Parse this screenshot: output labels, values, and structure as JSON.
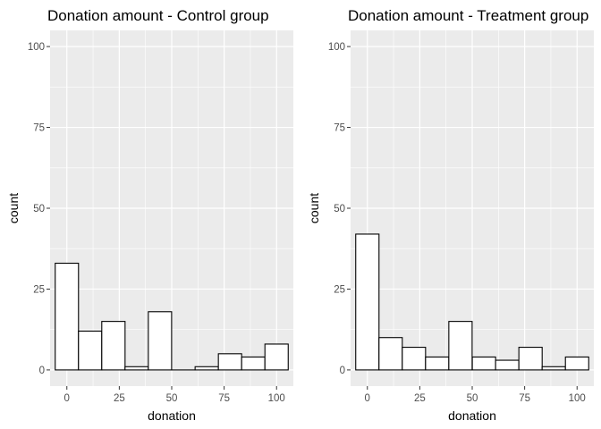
{
  "chart_data": [
    {
      "type": "bar",
      "title": "Donation amount - Control group",
      "xlabel": "donation",
      "ylabel": "count",
      "xticks": [
        0,
        25,
        50,
        75,
        100
      ],
      "yticks": [
        0,
        25,
        50,
        75,
        100
      ],
      "xlim": [
        -8,
        108
      ],
      "ylim": [
        0,
        100
      ],
      "bin_width": 11.1,
      "bins": [
        {
          "center": 0,
          "count": 33
        },
        {
          "center": 11.1,
          "count": 12
        },
        {
          "center": 22.2,
          "count": 15
        },
        {
          "center": 33.3,
          "count": 1
        },
        {
          "center": 44.4,
          "count": 18
        },
        {
          "center": 55.6,
          "count": 0
        },
        {
          "center": 66.7,
          "count": 1
        },
        {
          "center": 77.8,
          "count": 5
        },
        {
          "center": 88.9,
          "count": 4
        },
        {
          "center": 100,
          "count": 8
        }
      ],
      "colors": {
        "fill": "#ffffff",
        "stroke": "#000000",
        "panel": "#ebebeb",
        "grid": "#ffffff"
      }
    },
    {
      "type": "bar",
      "title": "Donation amount - Treatment group",
      "xlabel": "donation",
      "ylabel": "count",
      "xticks": [
        0,
        25,
        50,
        75,
        100
      ],
      "yticks": [
        0,
        25,
        50,
        75,
        100
      ],
      "xlim": [
        -8,
        108
      ],
      "ylim": [
        0,
        100
      ],
      "bin_width": 11.1,
      "bins": [
        {
          "center": 0,
          "count": 42
        },
        {
          "center": 11.1,
          "count": 10
        },
        {
          "center": 22.2,
          "count": 7
        },
        {
          "center": 33.3,
          "count": 4
        },
        {
          "center": 44.4,
          "count": 15
        },
        {
          "center": 55.6,
          "count": 4
        },
        {
          "center": 66.7,
          "count": 3
        },
        {
          "center": 77.8,
          "count": 7
        },
        {
          "center": 88.9,
          "count": 1
        },
        {
          "center": 100,
          "count": 4
        }
      ],
      "colors": {
        "fill": "#ffffff",
        "stroke": "#000000",
        "panel": "#ebebeb",
        "grid": "#ffffff"
      }
    }
  ]
}
